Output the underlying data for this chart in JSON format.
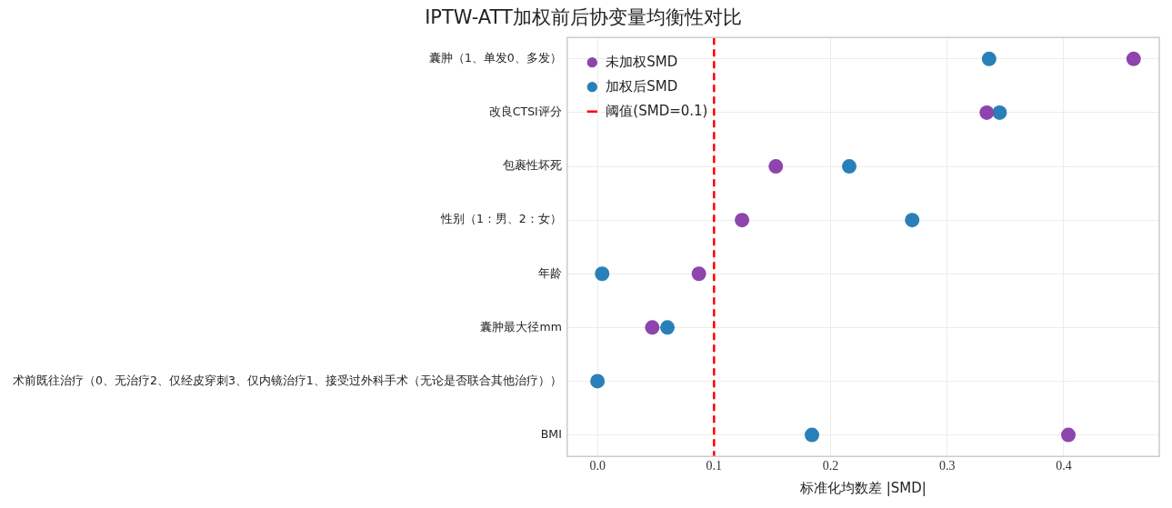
{
  "chart_data": {
    "type": "scatter",
    "title": "IPTW-ATT加权前后协变量均衡性对比",
    "xlabel": "标准化均数差 |SMD|",
    "orientation": "horizontal",
    "categories": [
      "囊肿（1、单发0、多发）",
      "改良CTSI评分",
      "包裹性坏死",
      "性别（1：男、2：女）",
      "年龄",
      "囊肿最大径mm",
      "术前既往治疗（0、无治疗2、仅经皮穿刺3、仅内镜治疗1、接受过外科手术（无论是否联合其他治疗））",
      "BMI"
    ],
    "series": [
      {
        "name": "未加权SMD",
        "color": "#8e44ad",
        "values": [
          0.46,
          0.334,
          0.153,
          0.124,
          0.087,
          0.047,
          null,
          0.404
        ]
      },
      {
        "name": "加权后SMD",
        "color": "#2980b9",
        "values": [
          0.336,
          0.345,
          0.216,
          0.27,
          0.004,
          0.06,
          0.0,
          0.184
        ]
      }
    ],
    "ref_lines": [
      {
        "axis": "x",
        "value": 0.1,
        "label": "阈值(SMD=0.1)",
        "color": "#ff0000",
        "line_style": "dashed"
      }
    ],
    "xlim": [
      -0.026,
      0.482
    ],
    "xticks": [
      {
        "value": 0,
        "label": "0.0"
      },
      {
        "value": 0.1,
        "label": "0.1"
      },
      {
        "value": 0.2,
        "label": "0.2"
      },
      {
        "value": 0.3,
        "label": "0.3"
      },
      {
        "value": 0.4,
        "label": "0.4"
      }
    ],
    "grid": true,
    "legend": "top left",
    "marker": "circle"
  }
}
